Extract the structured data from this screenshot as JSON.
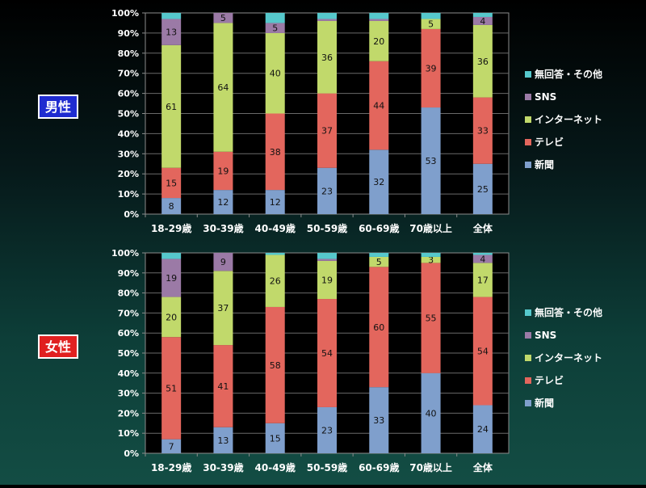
{
  "chart_data": [
    {
      "type": "bar",
      "stacked": true,
      "title": "男性",
      "title_color": "#1f2bd0",
      "categories": [
        "18-29歳",
        "30-39歳",
        "40-49歳",
        "50-59歳",
        "60-69歳",
        "70歳以上",
        "全体"
      ],
      "ylim": [
        0,
        100
      ],
      "yticks": [
        "0%",
        "10%",
        "20%",
        "30%",
        "40%",
        "50%",
        "60%",
        "70%",
        "80%",
        "90%",
        "100%"
      ],
      "series": [
        {
          "name": "新聞",
          "color": "#7f9fcc",
          "values": [
            8,
            12,
            12,
            23,
            32,
            53,
            25
          ],
          "labels": [
            "8",
            "12",
            "12",
            "23",
            "32",
            "53",
            "25"
          ]
        },
        {
          "name": "テレビ",
          "color": "#e3665d",
          "values": [
            15,
            19,
            38,
            37,
            44,
            39,
            33
          ],
          "labels": [
            "15",
            "19",
            "38",
            "37",
            "44",
            "39",
            "33"
          ]
        },
        {
          "name": "インターネット",
          "color": "#c1d96b",
          "values": [
            61,
            64,
            40,
            36,
            20,
            5,
            36
          ],
          "labels": [
            "61",
            "64",
            "40",
            "36",
            "20",
            "5",
            "36"
          ]
        },
        {
          "name": "SNS",
          "color": "#9b7aa6",
          "values": [
            13,
            5,
            5,
            1,
            1,
            0,
            4
          ],
          "labels": [
            "13",
            "5",
            "5",
            "",
            "",
            "",
            "4"
          ]
        },
        {
          "name": "無回答・その他",
          "color": "#56c8cc",
          "values": [
            3,
            0,
            5,
            3,
            3,
            3,
            2
          ],
          "labels": [
            "",
            "",
            "",
            "",
            "",
            "",
            ""
          ]
        }
      ],
      "legend": "right"
    },
    {
      "type": "bar",
      "stacked": true,
      "title": "女性",
      "title_color": "#e02020",
      "categories": [
        "18-29歳",
        "30-39歳",
        "40-49歳",
        "50-59歳",
        "60-69歳",
        "70歳以上",
        "全体"
      ],
      "ylim": [
        0,
        100
      ],
      "yticks": [
        "0%",
        "10%",
        "20%",
        "30%",
        "40%",
        "50%",
        "60%",
        "70%",
        "80%",
        "90%",
        "100%"
      ],
      "series": [
        {
          "name": "新聞",
          "color": "#7f9fcc",
          "values": [
            7,
            13,
            15,
            23,
            33,
            40,
            24
          ],
          "labels": [
            "7",
            "13",
            "15",
            "23",
            "33",
            "40",
            "24"
          ]
        },
        {
          "name": "テレビ",
          "color": "#e3665d",
          "values": [
            51,
            41,
            58,
            54,
            60,
            55,
            54
          ],
          "labels": [
            "51",
            "41",
            "58",
            "54",
            "60",
            "55",
            "54"
          ]
        },
        {
          "name": "インターネット",
          "color": "#c1d96b",
          "values": [
            20,
            37,
            26,
            19,
            5,
            3,
            17
          ],
          "labels": [
            "20",
            "37",
            "26",
            "19",
            "5",
            "3",
            "17"
          ]
        },
        {
          "name": "SNS",
          "color": "#9b7aa6",
          "values": [
            19,
            9,
            0,
            1,
            0,
            0,
            4
          ],
          "labels": [
            "19",
            "9",
            "",
            "",
            "",
            "",
            "4"
          ]
        },
        {
          "name": "無回答・その他",
          "color": "#56c8cc",
          "values": [
            3,
            0,
            1,
            3,
            2,
            2,
            1
          ],
          "labels": [
            "",
            "",
            "",
            "",
            "",
            "",
            ""
          ]
        }
      ],
      "legend": "right"
    }
  ]
}
